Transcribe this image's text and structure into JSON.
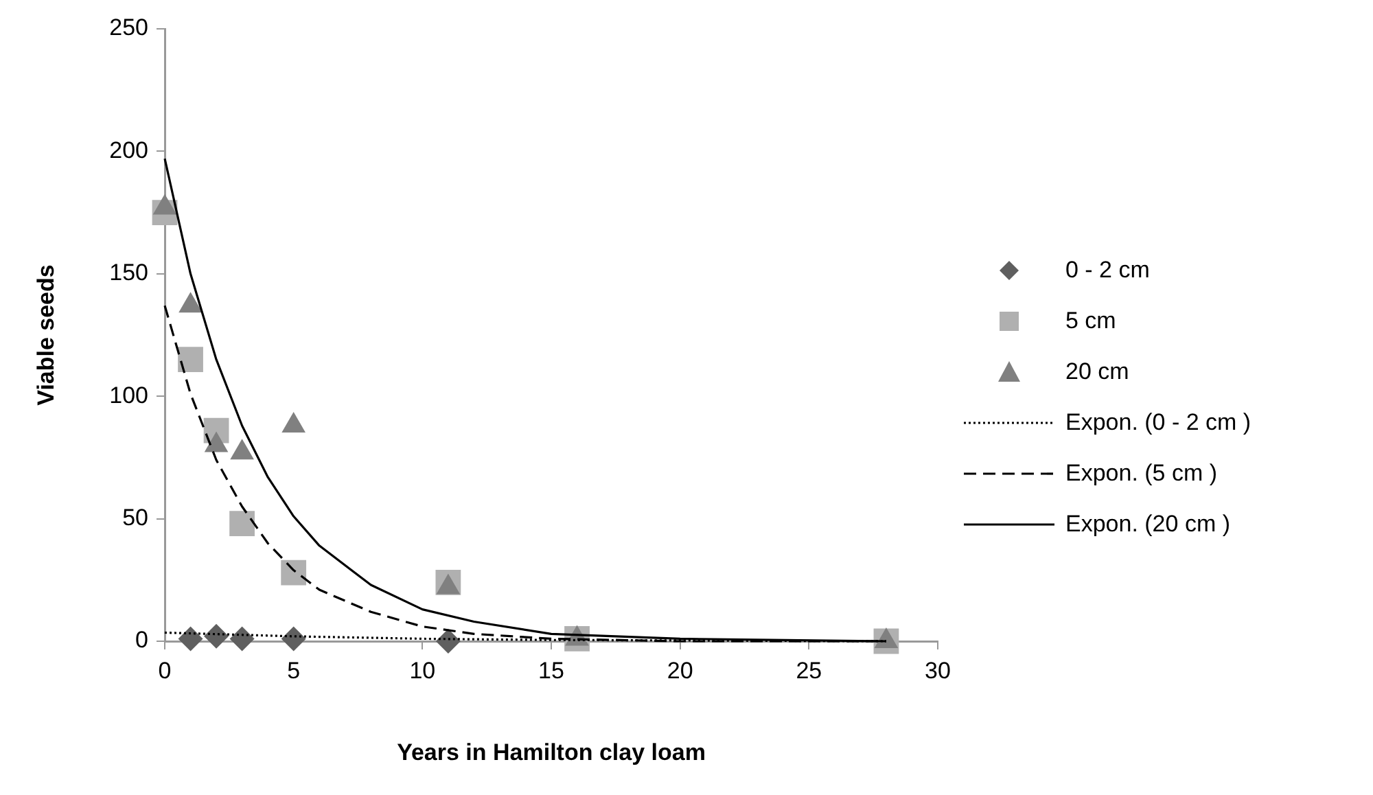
{
  "chart_data": {
    "type": "scatter",
    "xlabel": "Years in Hamilton clay loam",
    "ylabel": "Viable seeds",
    "xlim": [
      0,
      30
    ],
    "xticks": [
      0,
      5,
      10,
      15,
      20,
      25,
      30
    ],
    "ylim": [
      0,
      250
    ],
    "yticks": [
      0,
      50,
      100,
      150,
      200,
      250
    ],
    "grid": false,
    "legend": "right",
    "series": [
      {
        "name": "0 - 2 cm",
        "marker": "diamond",
        "color": "#5f5f5f",
        "x": [
          1,
          2,
          3,
          5,
          11
        ],
        "values": [
          1,
          2,
          1,
          1,
          0
        ]
      },
      {
        "name": "5 cm",
        "marker": "square",
        "color": "#b0b0b0",
        "x": [
          0,
          1,
          2,
          3,
          5,
          11,
          16,
          28
        ],
        "values": [
          175,
          115,
          86,
          48,
          28,
          24,
          1,
          0
        ]
      },
      {
        "name": "20 cm",
        "marker": "triangle",
        "color": "#808080",
        "x": [
          0,
          1,
          2,
          3,
          5,
          11,
          16,
          28
        ],
        "values": [
          177,
          137,
          80,
          77,
          88,
          22,
          1,
          0
        ]
      },
      {
        "name": "Expon. (0 - 2 cm )",
        "type": "line",
        "marker": "none",
        "line_style": "dotted",
        "color": "#000000",
        "x": [
          0,
          5,
          10,
          15,
          20,
          28
        ],
        "values": [
          3.5,
          2,
          1,
          0.5,
          0.3,
          0
        ]
      },
      {
        "name": "Expon. (5 cm )",
        "type": "line",
        "marker": "none",
        "line_style": "dashed",
        "color": "#000000",
        "x": [
          0,
          1,
          2,
          3,
          4,
          5,
          6,
          8,
          10,
          12,
          15,
          20,
          28
        ],
        "values": [
          137,
          101,
          74,
          55,
          40,
          29,
          21,
          12,
          6,
          3,
          1,
          0,
          0
        ]
      },
      {
        "name": "Expon. (20 cm )",
        "type": "line",
        "marker": "none",
        "line_style": "solid",
        "color": "#000000",
        "x": [
          0,
          1,
          2,
          3,
          4,
          5,
          6,
          8,
          10,
          12,
          15,
          20,
          28
        ],
        "values": [
          197,
          150,
          115,
          88,
          67,
          51,
          39,
          23,
          13,
          8,
          3,
          1,
          0
        ]
      }
    ]
  }
}
